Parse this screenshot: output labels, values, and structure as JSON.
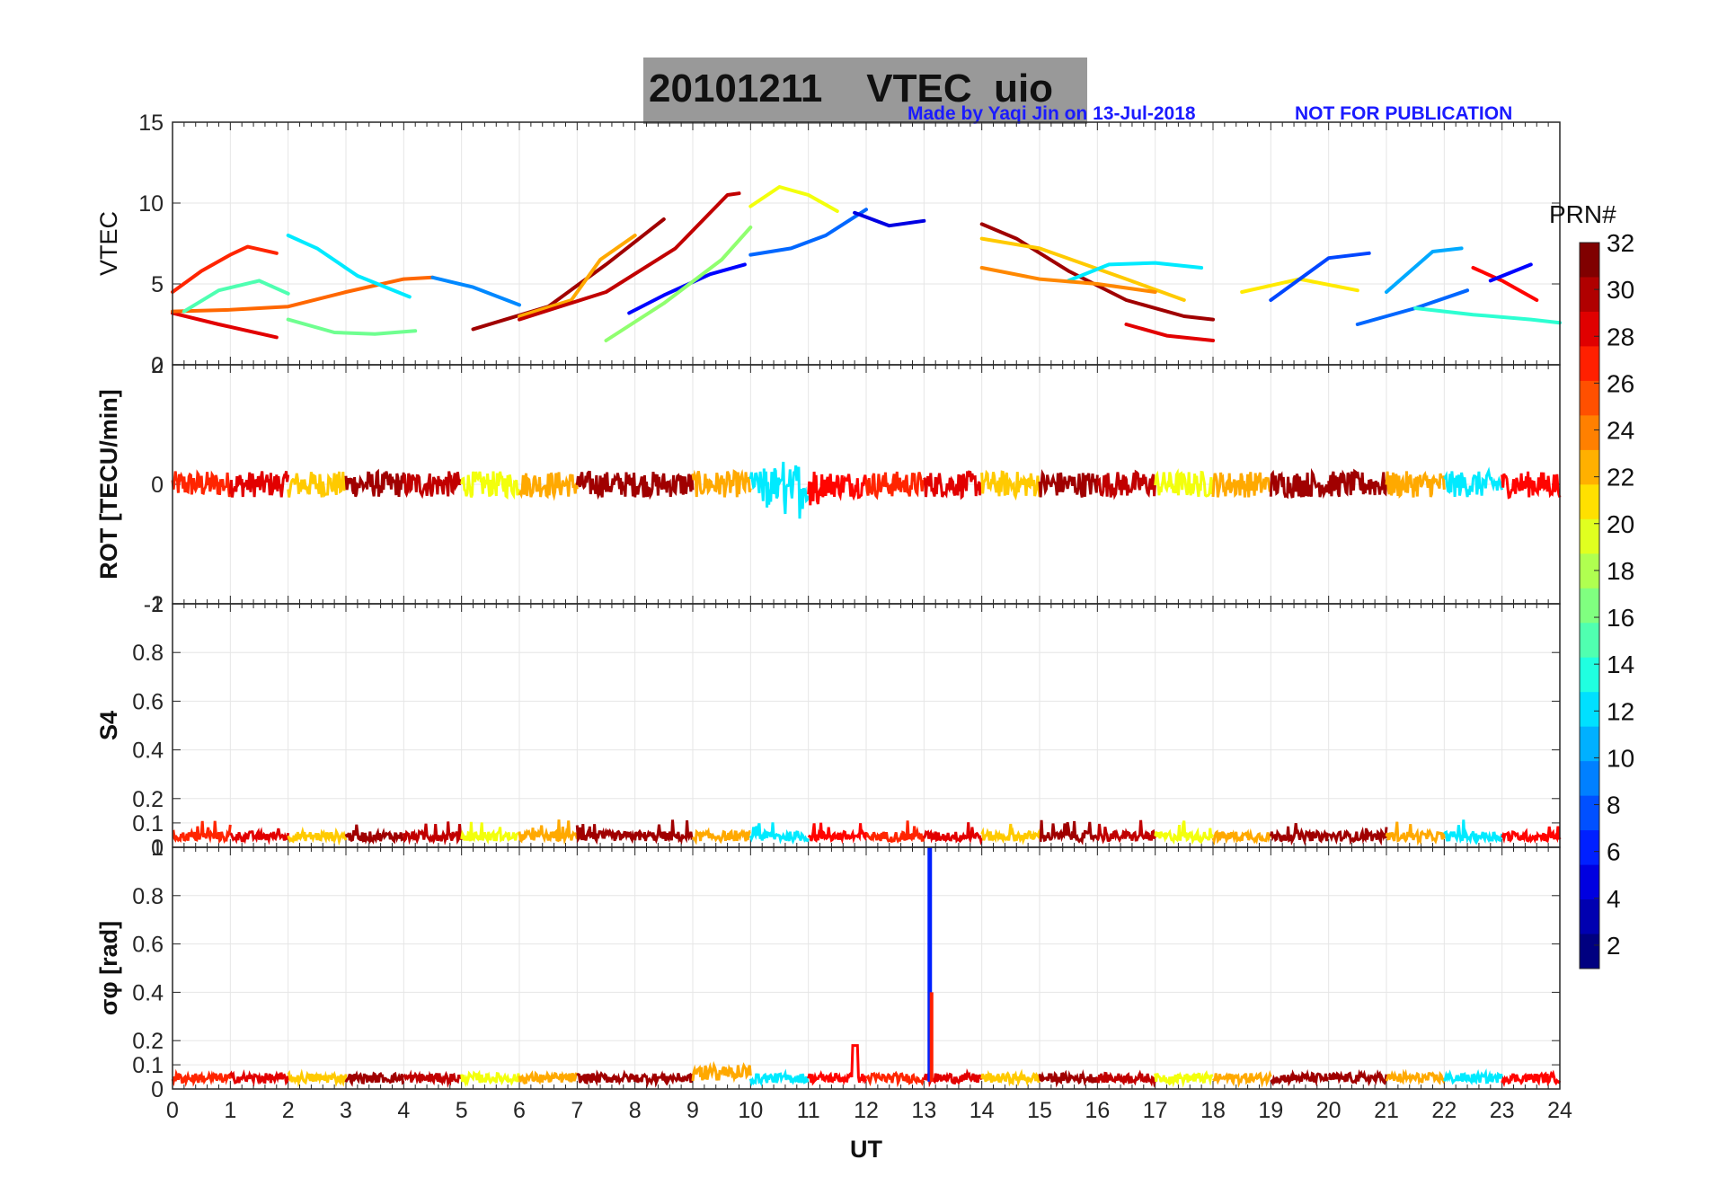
{
  "title": {
    "date": "20101211",
    "quantity": "VTEC",
    "station": "uio"
  },
  "credit": {
    "made_by": "Made by Yaqi Jin on 13-Jul-2018",
    "notice": "NOT FOR PUBLICATION"
  },
  "colorbar": {
    "label": "PRN#",
    "ticks": [
      "32",
      "30",
      "28",
      "26",
      "24",
      "22",
      "20",
      "18",
      "16",
      "14",
      "12",
      "10",
      "8",
      "6",
      "4",
      "2"
    ],
    "colors": [
      "#800000",
      "#b00000",
      "#e00000",
      "#ff2000",
      "#ff5000",
      "#ff8000",
      "#ffb000",
      "#ffe000",
      "#e0ff20",
      "#b0ff50",
      "#80ff80",
      "#50ffb0",
      "#20ffe0",
      "#00e0ff",
      "#00b0ff",
      "#0080ff",
      "#0050ff",
      "#0020ff",
      "#0000e0",
      "#0000b0",
      "#000080"
    ]
  },
  "chart_data": [
    {
      "type": "line",
      "panel": "vtec",
      "ylabel": "VTEC",
      "ylim": [
        0,
        15
      ],
      "yticks": [
        "15",
        "10",
        "5",
        "0"
      ],
      "xlim": [
        0,
        24
      ],
      "series": [
        {
          "name": "PRN 27",
          "x": [
            0,
            0.5,
            1,
            1.3,
            1.8
          ],
          "y": [
            4.5,
            5.8,
            6.8,
            7.3,
            6.9
          ]
        },
        {
          "name": "PRN 29",
          "x": [
            0,
            0.8,
            1.8
          ],
          "y": [
            3.2,
            2.5,
            1.7
          ]
        },
        {
          "name": "PRN 25",
          "x": [
            0,
            1,
            2,
            3,
            4,
            4.5
          ],
          "y": [
            3.3,
            3.4,
            3.6,
            4.5,
            5.3,
            5.4
          ]
        },
        {
          "name": "PRN 15",
          "x": [
            0.2,
            0.8,
            1.5,
            2
          ],
          "y": [
            3.3,
            4.6,
            5.2,
            4.4
          ]
        },
        {
          "name": "PRN 12",
          "x": [
            2,
            2.5,
            3.2,
            4.1
          ],
          "y": [
            8.0,
            7.2,
            5.5,
            4.2
          ]
        },
        {
          "name": "PRN 16",
          "x": [
            2,
            2.8,
            3.5,
            4.2
          ],
          "y": [
            2.8,
            2.0,
            1.9,
            2.1
          ]
        },
        {
          "name": "PRN 9",
          "x": [
            4.5,
            5.2,
            6
          ],
          "y": [
            5.4,
            4.8,
            3.7
          ]
        },
        {
          "name": "PRN 31",
          "x": [
            5.2,
            6.5,
            7.5,
            8.5
          ],
          "y": [
            2.2,
            3.6,
            6.2,
            9.0
          ]
        },
        {
          "name": "PRN 23",
          "x": [
            6,
            6.9,
            7.4,
            8
          ],
          "y": [
            3.0,
            4.0,
            6.5,
            8.0
          ]
        },
        {
          "name": "PRN 30",
          "x": [
            6,
            7.5,
            8.7,
            9.6,
            9.8
          ],
          "y": [
            2.8,
            4.5,
            7.2,
            10.5,
            10.6
          ]
        },
        {
          "name": "PRN 5",
          "x": [
            7.9,
            8.5,
            9.3,
            9.9
          ],
          "y": [
            3.2,
            4.3,
            5.6,
            6.2
          ]
        },
        {
          "name": "PRN 17",
          "x": [
            7.5,
            8.5,
            9.5,
            10
          ],
          "y": [
            1.5,
            3.8,
            6.5,
            8.5
          ]
        },
        {
          "name": "PRN 20",
          "x": [
            10,
            10.5,
            11,
            11.5
          ],
          "y": [
            9.8,
            11.0,
            10.5,
            9.5
          ]
        },
        {
          "name": "PRN 8",
          "x": [
            10,
            10.7,
            11.3,
            12
          ],
          "y": [
            6.8,
            7.2,
            8.0,
            9.6
          ]
        },
        {
          "name": "PRN 4",
          "x": [
            11.8,
            12.4,
            13
          ],
          "y": [
            9.4,
            8.6,
            8.9
          ]
        },
        {
          "name": "PRN 31",
          "x": [
            14,
            14.6,
            15.5,
            16.5,
            17.5,
            18
          ],
          "y": [
            8.7,
            7.8,
            5.8,
            4.0,
            3.0,
            2.8
          ]
        },
        {
          "name": "PRN 22",
          "x": [
            14,
            15,
            16.5,
            17.5
          ],
          "y": [
            7.8,
            7.2,
            5.3,
            4.0
          ]
        },
        {
          "name": "PRN 12",
          "x": [
            15.5,
            16.2,
            17,
            17.8
          ],
          "y": [
            5.2,
            6.2,
            6.3,
            6.0
          ]
        },
        {
          "name": "PRN 24",
          "x": [
            14,
            15,
            16,
            17
          ],
          "y": [
            6.0,
            5.3,
            5.0,
            4.5
          ]
        },
        {
          "name": "PRN 29",
          "x": [
            16.5,
            17.2,
            18
          ],
          "y": [
            2.5,
            1.8,
            1.5
          ]
        },
        {
          "name": "PRN 21",
          "x": [
            18.5,
            19.5,
            20.5
          ],
          "y": [
            4.5,
            5.3,
            4.6
          ]
        },
        {
          "name": "PRN 7",
          "x": [
            19,
            20,
            20.7
          ],
          "y": [
            4.0,
            6.6,
            6.9
          ]
        },
        {
          "name": "PRN 8",
          "x": [
            20.5,
            21.5,
            22.4
          ],
          "y": [
            2.5,
            3.5,
            4.6
          ]
        },
        {
          "name": "PRN 10",
          "x": [
            21,
            21.8,
            22.3
          ],
          "y": [
            4.5,
            7.0,
            7.2
          ]
        },
        {
          "name": "PRN 28",
          "x": [
            22.5,
            23,
            23.6
          ],
          "y": [
            6.0,
            5.2,
            4.0
          ]
        },
        {
          "name": "PRN 5",
          "x": [
            22.8,
            23.5
          ],
          "y": [
            5.2,
            6.2
          ]
        },
        {
          "name": "PRN 14",
          "x": [
            21.5,
            22.5,
            23.5,
            24
          ],
          "y": [
            3.5,
            3.1,
            2.8,
            2.6
          ]
        }
      ]
    },
    {
      "type": "line",
      "panel": "rot",
      "ylabel": "ROT [TECU/min]",
      "ylim": [
        -2,
        2
      ],
      "yticks": [
        "2",
        "0",
        "-2"
      ],
      "xlim": [
        0,
        24
      ],
      "summary": "Continuous multi-PRN ROT traces clustered around 0, typically within ±0.3 TECU/min; largest excursions near 10.5–11 UT reaching about -0.6 TECU/min."
    },
    {
      "type": "line",
      "panel": "s4",
      "ylabel": "S4",
      "ylim": [
        0,
        1
      ],
      "yticks": [
        "1",
        "0.8",
        "0.6",
        "0.4",
        "0.2",
        "0.1",
        "0"
      ],
      "xlim": [
        0,
        24
      ],
      "summary": "S4 index stays low, about 0.03–0.08 all day, occasional small peaks near 0.1."
    },
    {
      "type": "line",
      "panel": "sigma_phi",
      "ylabel": "σφ [rad]",
      "ylim": [
        0,
        1
      ],
      "yticks": [
        "1",
        "0.8",
        "0.6",
        "0.4",
        "0.2",
        "0.1",
        "0"
      ],
      "xlim": [
        0,
        24
      ],
      "xlabel": "UT",
      "xticks": [
        "0",
        "1",
        "2",
        "3",
        "4",
        "5",
        "6",
        "7",
        "8",
        "9",
        "10",
        "11",
        "12",
        "13",
        "14",
        "15",
        "16",
        "17",
        "18",
        "19",
        "20",
        "21",
        "22",
        "23",
        "24"
      ],
      "spike": {
        "x": 13.1,
        "y": 1.0
      },
      "summary": "Phase scintillation around 0.03–0.06 rad, small bumps near 9–10 UT (~0.12) and 11.8 UT (~0.18), sharp spike to ~1 rad at 13.1 UT."
    }
  ]
}
